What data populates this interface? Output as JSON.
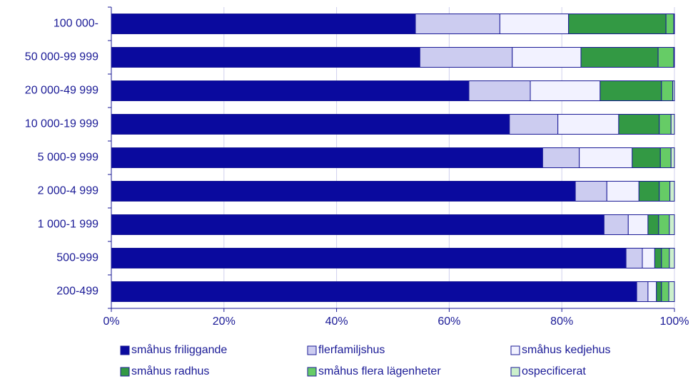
{
  "chart_data": {
    "type": "stacked_barh",
    "categories": [
      "100 000-",
      "50 000-99 999",
      "20 000-49 999",
      "10 000-19 999",
      "5 000-9 999",
      "2 000-4 999",
      "1 000-1 999",
      "500-999",
      "200-499"
    ],
    "series": [
      {
        "name": "småhus friliggande",
        "color": "#0a0a9e",
        "values": [
          54.0,
          54.8,
          63.5,
          70.7,
          76.6,
          82.4,
          87.5,
          91.4,
          93.3
        ]
      },
      {
        "name": "flerfamiljshus",
        "color": "#ccccf0",
        "values": [
          15.0,
          16.4,
          10.9,
          8.6,
          6.5,
          5.6,
          4.3,
          2.9,
          2.0
        ]
      },
      {
        "name": "småhus kedjehus",
        "color": "#f2f2ff",
        "values": [
          12.2,
          12.2,
          12.4,
          10.8,
          9.4,
          5.7,
          3.5,
          2.2,
          1.5
        ]
      },
      {
        "name": "småhus radhus",
        "color": "#339944",
        "values": [
          17.3,
          13.7,
          10.9,
          7.2,
          5.0,
          3.6,
          1.9,
          1.2,
          0.9
        ]
      },
      {
        "name": "småhus flera lägenheter",
        "color": "#66cc66",
        "values": [
          1.4,
          2.8,
          2.0,
          2.1,
          1.9,
          1.9,
          1.9,
          1.4,
          1.3
        ]
      },
      {
        "name": "ospecificerat",
        "color": "#ccf0cc",
        "values": [
          0.1,
          0.1,
          0.3,
          0.6,
          0.6,
          0.8,
          0.9,
          0.9,
          1.0
        ]
      }
    ],
    "xlim": [
      0,
      100
    ],
    "xticks": [
      {
        "value": 0,
        "label": "0%"
      },
      {
        "value": 20,
        "label": "20%"
      },
      {
        "value": 40,
        "label": "40%"
      },
      {
        "value": 60,
        "label": "60%"
      },
      {
        "value": 80,
        "label": "80%"
      },
      {
        "value": 100,
        "label": "100%"
      }
    ],
    "grid": true,
    "legend": "bottom"
  }
}
